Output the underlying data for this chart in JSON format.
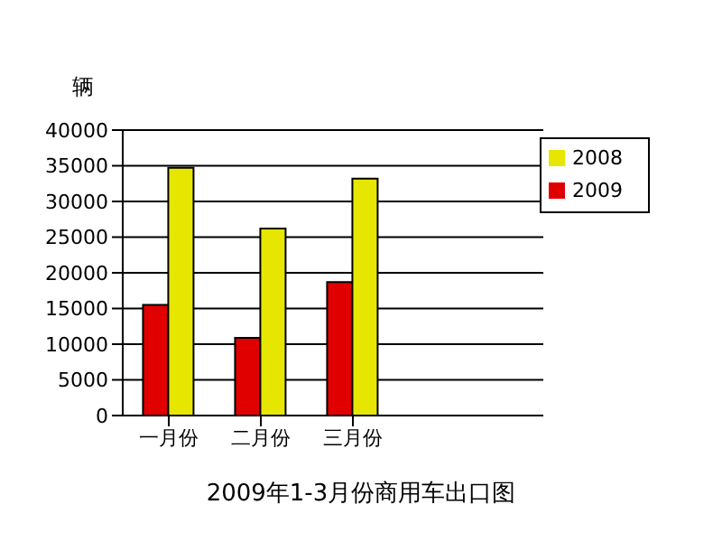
{
  "chart_data": {
    "type": "bar",
    "title": "2009年1-3月份商用车出口图",
    "ylabel": "辆",
    "categories": [
      "一月份",
      "二月份",
      "三月份"
    ],
    "series": [
      {
        "name": "2009",
        "color": "#e00000",
        "values": [
          15500,
          10900,
          18700
        ]
      },
      {
        "name": "2008",
        "color": "#e6e600",
        "values": [
          34700,
          26200,
          33200
        ]
      }
    ],
    "ylim": [
      0,
      40000
    ],
    "yticks": [
      0,
      5000,
      10000,
      15000,
      20000,
      25000,
      30000,
      35000,
      40000
    ],
    "grid": "y",
    "legend": "top right"
  }
}
